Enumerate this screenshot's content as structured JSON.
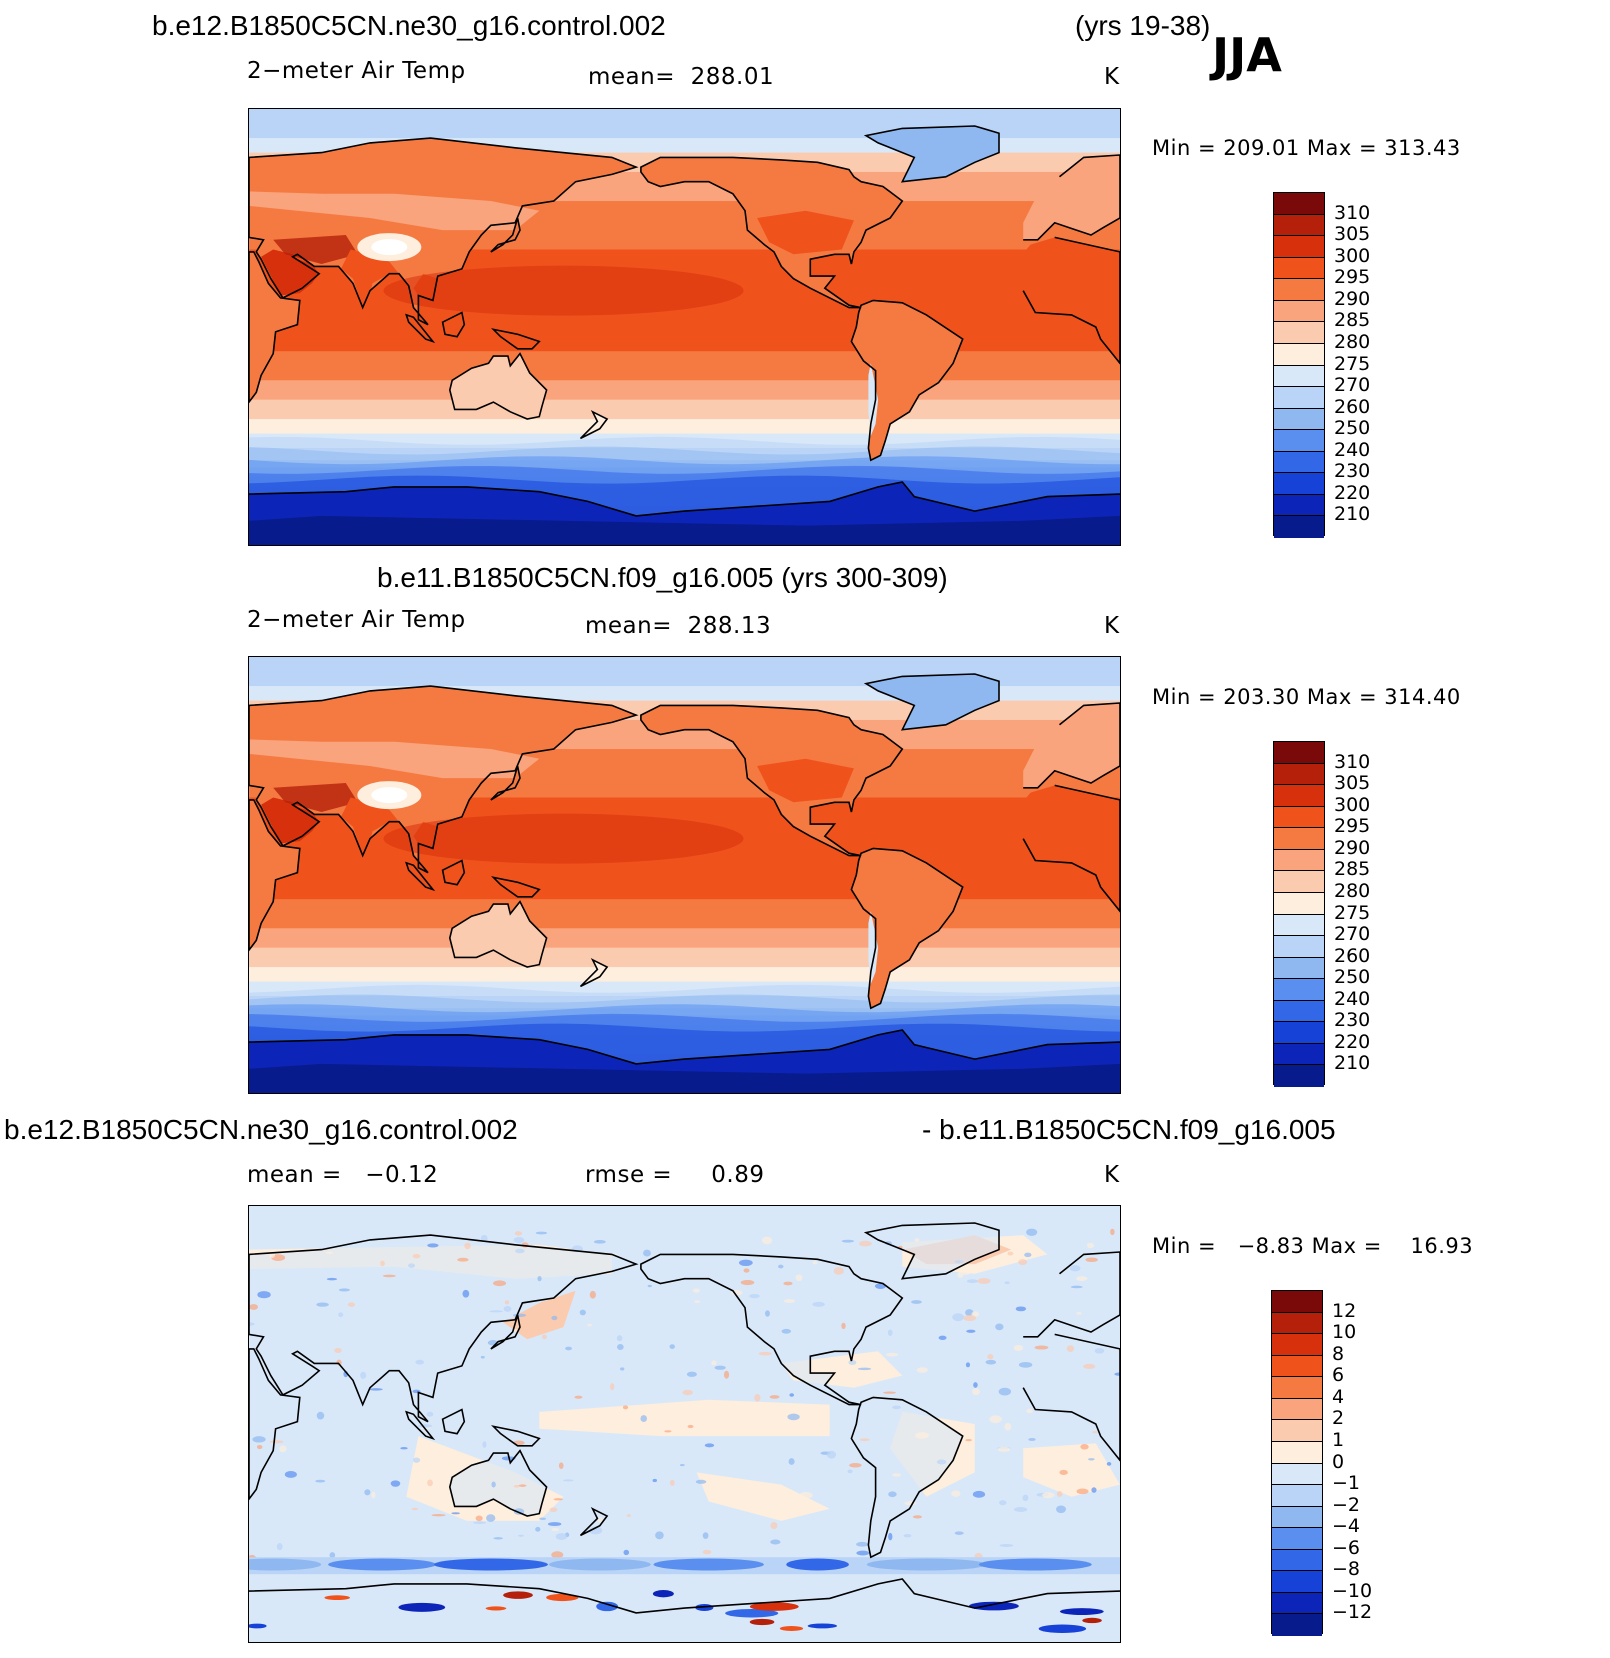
{
  "season": "JJA",
  "panels": [
    {
      "id": "p1",
      "case": "b.e12.B1850C5CN.ne30_g16.control.002",
      "years": "(yrs 19-38)",
      "variable": "2−meter Air Temp",
      "stat_label": "mean=",
      "stat_value": "288.01",
      "units": "K",
      "min_label": "Min",
      "min_value": "209.01",
      "max_label": "Max",
      "max_value": "313.43",
      "colorbar": {
        "colors": [
          "#7a0a0a",
          "#b5200a",
          "#d7300c",
          "#f0521c",
          "#f57a42",
          "#f9a47c",
          "#fbcbb0",
          "#fdeedd",
          "#d8e8f9",
          "#b9d4f6",
          "#8fb8f1",
          "#5a8ff0",
          "#3268e8",
          "#1642d8",
          "#0c25b8",
          "#071b8c"
        ],
        "ticks": [
          "310",
          "305",
          "300",
          "295",
          "290",
          "285",
          "280",
          "275",
          "270",
          "260",
          "250",
          "240",
          "230",
          "220",
          "210"
        ]
      }
    },
    {
      "id": "p2",
      "case": "b.e11.B1850C5CN.f09_g16.005 (yrs 300-309)",
      "variable": "2−meter Air Temp",
      "stat_label": "mean=",
      "stat_value": "288.13",
      "units": "K",
      "min_label": "Min",
      "min_value": "203.30",
      "max_label": "Max",
      "max_value": "314.40",
      "colorbar": {
        "colors": [
          "#7a0a0a",
          "#b5200a",
          "#d7300c",
          "#f0521c",
          "#f57a42",
          "#f9a47c",
          "#fbcbb0",
          "#fdeedd",
          "#d8e8f9",
          "#b9d4f6",
          "#8fb8f1",
          "#5a8ff0",
          "#3268e8",
          "#1642d8",
          "#0c25b8",
          "#071b8c"
        ],
        "ticks": [
          "310",
          "305",
          "300",
          "295",
          "290",
          "285",
          "280",
          "275",
          "270",
          "260",
          "250",
          "240",
          "230",
          "220",
          "210"
        ]
      }
    },
    {
      "id": "p3",
      "case_a": "b.e12.B1850C5CN.ne30_g16.control.002",
      "case_b": "- b.e11.B1850C5CN.f09_g16.005",
      "stat_label": "mean =",
      "stat_value": "−0.12",
      "rmse_label": "rmse =",
      "rmse_value": "0.89",
      "units": "K",
      "min_label": "Min",
      "min_value": "−8.83",
      "max_label": "Max",
      "max_value": "16.93",
      "colorbar": {
        "colors": [
          "#7a0a0a",
          "#b5200a",
          "#d7300c",
          "#f0521c",
          "#f57a42",
          "#f9a47c",
          "#fbcbb0",
          "#fdeedd",
          "#d8e8f9",
          "#b9d4f6",
          "#8fb8f1",
          "#5a8ff0",
          "#3268e8",
          "#1642d8",
          "#0c25b8",
          "#071b8c"
        ],
        "ticks": [
          "12",
          "10",
          "8",
          "6",
          "4",
          "2",
          "1",
          "0",
          "−1",
          "−2",
          "−4",
          "−6",
          "−8",
          "−10",
          "−12"
        ]
      }
    }
  ],
  "chart_data": [
    {
      "type": "heatmap",
      "title": "b.e12.B1850C5CN.ne30_g16.control.002 (yrs 19-38) JJA",
      "variable": "2-meter Air Temp",
      "units": "K",
      "mean": 288.01,
      "min": 209.01,
      "max": 313.43,
      "levels": [
        210,
        220,
        230,
        240,
        250,
        260,
        270,
        275,
        280,
        285,
        290,
        295,
        300,
        305,
        310
      ]
    },
    {
      "type": "heatmap",
      "title": "b.e11.B1850C5CN.f09_g16.005 (yrs 300-309)",
      "variable": "2-meter Air Temp",
      "units": "K",
      "mean": 288.13,
      "min": 203.3,
      "max": 314.4,
      "levels": [
        210,
        220,
        230,
        240,
        250,
        260,
        270,
        275,
        280,
        285,
        290,
        295,
        300,
        305,
        310
      ]
    },
    {
      "type": "heatmap",
      "title": "b.e12.B1850C5CN.ne30_g16.control.002 - b.e11.B1850C5CN.f09_g16.005",
      "units": "K",
      "mean": -0.12,
      "rmse": 0.89,
      "min": -8.83,
      "max": 16.93,
      "levels": [
        -12,
        -10,
        -8,
        -6,
        -4,
        -2,
        -1,
        0,
        1,
        2,
        4,
        6,
        8,
        10,
        12
      ]
    }
  ]
}
